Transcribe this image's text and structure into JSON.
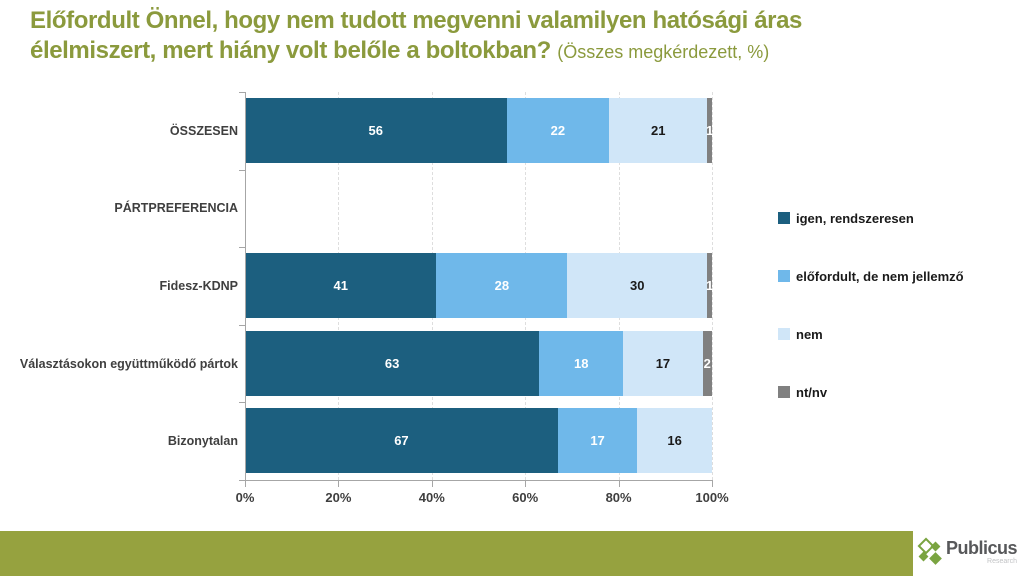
{
  "title": {
    "line1": "Előfordult Önnel, hogy nem tudott megvenni valamilyen hatósági áras",
    "line2": "élelmiszert, mert hiány volt belőle a boltokban?",
    "suffix": "(Összes megkérdezett, %)"
  },
  "colors": {
    "title_olive": "#8b9a3d",
    "footer_band_olive": "#96a23f",
    "axis_gray": "#a6a6a6",
    "gridline_gray": "#dedede",
    "logo_green": "#7aa441"
  },
  "chart_data": {
    "type": "bar",
    "orientation": "horizontal",
    "stacked": true,
    "unit": "%",
    "categories": [
      "ÖSSZESEN",
      "PÁRTPREFERENCIA",
      "Fidesz-KDNP",
      "Választásokon együttműködő pártok",
      "Bizonytalan"
    ],
    "series": [
      {
        "name": "igen, rendszeresen",
        "color": "#1c5f7f",
        "label_color": "#ffffff",
        "values": [
          56,
          null,
          41,
          63,
          67
        ]
      },
      {
        "name": "előfordult, de nem jellemző",
        "color": "#6fb8ea",
        "label_color": "#ffffff",
        "values": [
          22,
          null,
          28,
          18,
          17
        ]
      },
      {
        "name": "nem",
        "color": "#d0e6f8",
        "label_color": "#1a1a1a",
        "values": [
          21,
          null,
          30,
          17,
          16
        ]
      },
      {
        "name": "nt/nv",
        "color": "#808080",
        "label_color": "#ffffff",
        "values": [
          1,
          null,
          1,
          2,
          0
        ]
      }
    ],
    "x_ticks": [
      "0%",
      "20%",
      "40%",
      "60%",
      "80%",
      "100%"
    ],
    "x_tick_values": [
      0,
      20,
      40,
      60,
      80,
      100
    ],
    "xlim": [
      0,
      100
    ],
    "gridlines": "vertical-dashed",
    "legend_position": "right"
  },
  "footer": {
    "logo_name": "Publicus",
    "logo_sub": "Research"
  }
}
